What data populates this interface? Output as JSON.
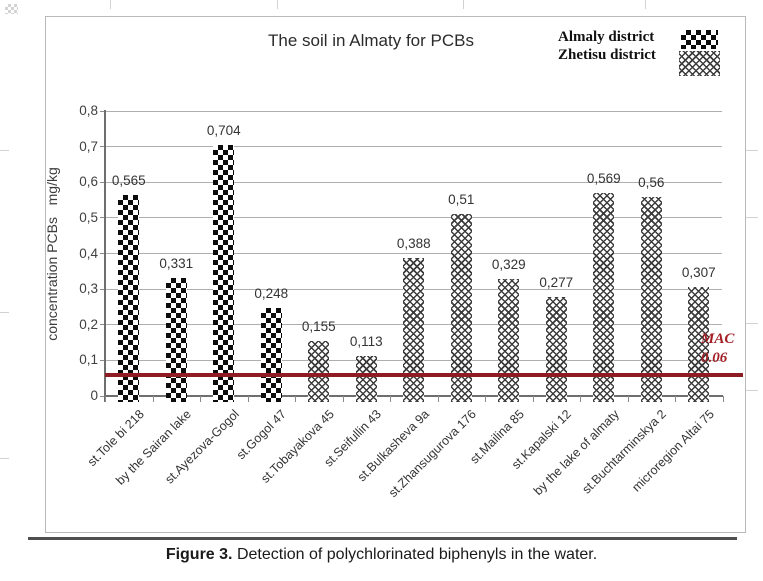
{
  "chart_data": {
    "type": "bar",
    "title": "The soil in Almaty for PCBs",
    "ylabel": "concentration PCBs   mg/kg",
    "ylim": [
      0,
      0.8
    ],
    "grid": true,
    "decimal_separator": ",",
    "y_ticks": [
      {
        "value": 0.0,
        "label": "0"
      },
      {
        "value": 0.1,
        "label": "0,1"
      },
      {
        "value": 0.2,
        "label": "0,2"
      },
      {
        "value": 0.3,
        "label": "0,3"
      },
      {
        "value": 0.4,
        "label": "0,4"
      },
      {
        "value": 0.5,
        "label": "0,5"
      },
      {
        "value": 0.6,
        "label": "0,6"
      },
      {
        "value": 0.7,
        "label": "0,7"
      },
      {
        "value": 0.8,
        "label": "0,8"
      }
    ],
    "categories": [
      "st.Tole bi 218",
      "by the Sairan lake",
      "st.Ayezova-Gogol",
      "st.Gogol 47",
      "st.Tobayakova 45",
      "st.Seifullin 43",
      "st.Bulkasheva 9a",
      "st.Zhansugurova 176",
      "st.Mailina 85",
      "st.Kapalski 12",
      "by the lake of almaty",
      "st.Buchtarminskya 2",
      "microregion Altai 75"
    ],
    "values": [
      0.565,
      0.331,
      0.704,
      0.248,
      0.155,
      0.113,
      0.388,
      0.51,
      0.329,
      0.277,
      0.569,
      0.56,
      0.307
    ],
    "value_labels": [
      "0,565",
      "0,331",
      "0,704",
      "0,248",
      "0,155",
      "0,113",
      "0,388",
      "0,51",
      "0,329",
      "0,277",
      "0,569",
      "0,56",
      "0,307"
    ],
    "groups": [
      "almaly",
      "almaly",
      "almaly",
      "almaly",
      "zhetisu",
      "zhetisu",
      "zhetisu",
      "zhetisu",
      "zhetisu",
      "zhetisu",
      "zhetisu",
      "zhetisu",
      "zhetisu"
    ],
    "legend": [
      {
        "label": "Almaly district",
        "pattern": "coarse-checker"
      },
      {
        "label": "Zhetisu district",
        "pattern": "fine-checker"
      }
    ],
    "legend_position": "top-right",
    "reference_line": {
      "value": 0.06,
      "label_line1": "MAC",
      "label_line2": "0.06",
      "color": "#8e1c22",
      "text_color": "#a32026"
    }
  },
  "caption": {
    "prefix": "Figure 3.",
    "text": "Detection of polychlorinated biphenyls in the water."
  }
}
